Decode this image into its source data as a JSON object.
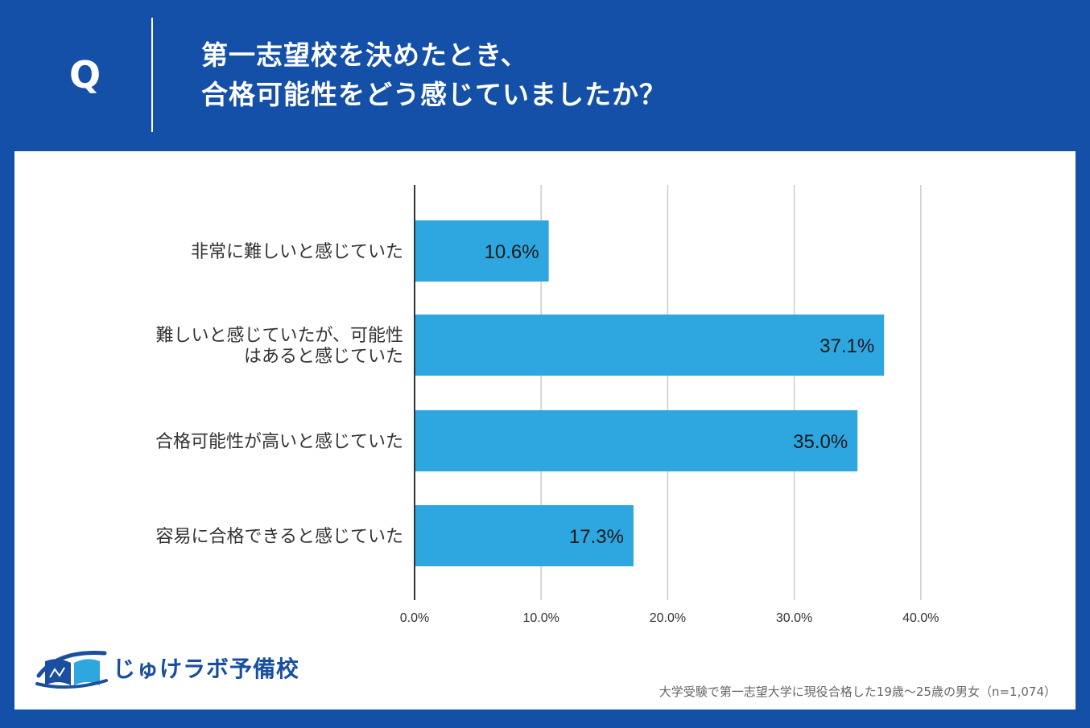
{
  "header": {
    "q_label": "Q",
    "question_line1": "第一志望校を決めたとき、",
    "question_line2": "合格可能性をどう感じていましたか？"
  },
  "chart_data": {
    "type": "bar",
    "orientation": "horizontal",
    "categories": [
      [
        "非常に難しいと感じていた"
      ],
      [
        "難しいと感じていたが、可能性",
        "はあると感じていた"
      ],
      [
        "合格可能性が高いと感じていた"
      ],
      [
        "容易に合格できると感じていた"
      ]
    ],
    "values": [
      10.6,
      37.1,
      35.0,
      17.3
    ],
    "value_labels": [
      "10.6%",
      "37.1%",
      "35.0%",
      "17.3%"
    ],
    "xlim": [
      0,
      40
    ],
    "x_ticks": [
      0,
      10,
      20,
      30,
      40
    ],
    "x_tick_labels": [
      "0.0%",
      "10.0%",
      "20.0%",
      "30.0%",
      "40.0%"
    ],
    "grid": true,
    "bar_color": "#2ea6e0"
  },
  "logo": {
    "text": "じゅけラボ予備校",
    "color": "#1a4fa0",
    "icon": "book-logo-icon"
  },
  "footnote": "大学受験で第一志望大学に現役合格した19歳〜25歳の男女（n=1,074）",
  "colors": {
    "background": "#1550a8",
    "panel": "#ffffff",
    "grid": "#cccccc",
    "axis": "#333333"
  }
}
